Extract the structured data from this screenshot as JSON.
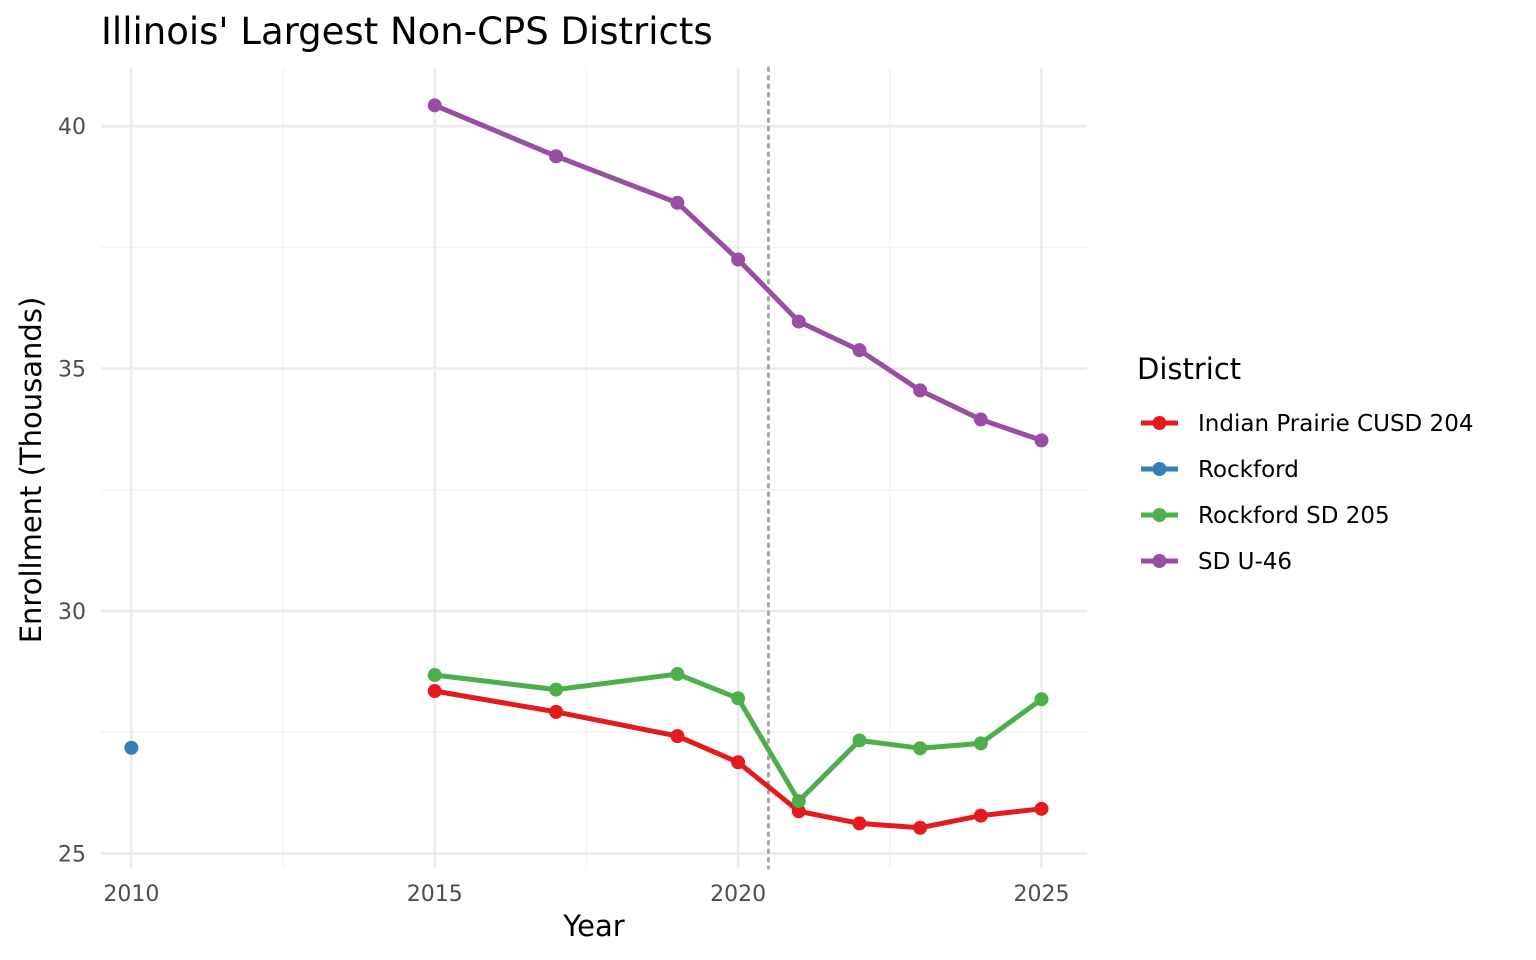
{
  "chart_data": {
    "type": "line",
    "title": "Illinois' Largest Non-CPS Districts",
    "xlabel": "Year",
    "ylabel": "Enrollment (Thousands)",
    "xlim": [
      2009.5,
      2025.75
    ],
    "ylim": [
      24.7,
      41.2
    ],
    "x_ticks": [
      2010,
      2015,
      2020,
      2025
    ],
    "y_ticks": [
      25,
      30,
      35,
      40
    ],
    "x_tick_labels": [
      "2010",
      "2015",
      "2020",
      "2025"
    ],
    "y_tick_labels": [
      "25",
      "30",
      "35",
      "40"
    ],
    "grid": true,
    "reference_line": {
      "x": 2020.5,
      "style": "dotted",
      "color": "#a6a6a6"
    },
    "legend": {
      "title": "District",
      "position": "right"
    },
    "series": [
      {
        "name": "Indian Prairie CUSD 204",
        "color": "#e41a1c",
        "points": [
          [
            2015,
            28.35
          ],
          [
            2017,
            27.92
          ],
          [
            2019,
            27.42
          ],
          [
            2020,
            26.88
          ],
          [
            2021,
            25.87
          ],
          [
            2022,
            25.62
          ],
          [
            2023,
            25.53
          ],
          [
            2024,
            25.78
          ],
          [
            2025,
            25.92
          ]
        ]
      },
      {
        "name": "Rockford",
        "color": "#377eb8",
        "points": [
          [
            2010,
            27.18
          ]
        ]
      },
      {
        "name": "Rockford SD 205",
        "color": "#4daf4a",
        "points": [
          [
            2015,
            28.68
          ],
          [
            2017,
            28.38
          ],
          [
            2019,
            28.7
          ],
          [
            2020,
            28.2
          ],
          [
            2021,
            26.08
          ],
          [
            2022,
            27.33
          ],
          [
            2023,
            27.17
          ],
          [
            2024,
            27.27
          ],
          [
            2025,
            28.18
          ]
        ]
      },
      {
        "name": "SD U-46",
        "color": "#984ea3",
        "points": [
          [
            2015,
            40.43
          ],
          [
            2017,
            39.38
          ],
          [
            2019,
            38.42
          ],
          [
            2020,
            37.25
          ],
          [
            2021,
            35.97
          ],
          [
            2022,
            35.38
          ],
          [
            2023,
            34.55
          ],
          [
            2024,
            33.95
          ],
          [
            2025,
            33.52
          ]
        ]
      }
    ]
  }
}
